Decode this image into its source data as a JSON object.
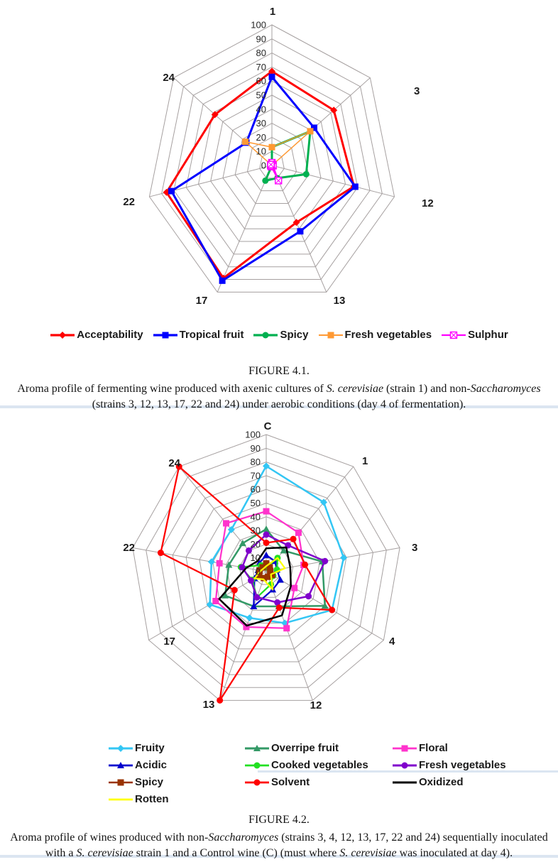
{
  "figure1": {
    "caption_title": "FIGURE 4.1.",
    "caption_plain": "Aroma profile of fermenting wine produced with axenic cultures of S. cerevisiae (strain 1) and non-Saccharomyces (strains 3, 12, 13, 17, 22 and 24) under aerobic conditions (day 4 of fermentation).",
    "caption_segments": [
      {
        "t": "Aroma profile of fermenting wine produced with axenic cultures of "
      },
      {
        "t": "S. cerevisiae",
        "i": true
      },
      {
        "t": " (strain 1) and non-"
      },
      {
        "t": "Saccharomyces",
        "i": true
      },
      {
        "t": " (strains 3, 12, 13, 17, 22 and 24) under aerobic conditions (day 4 of fermentation)."
      }
    ]
  },
  "figure2": {
    "caption_title": "FIGURE 4.2.",
    "caption_plain": "Aroma profile of wines produced with non-Saccharomyces (strains 3, 4, 12, 13, 17, 22 and 24) sequentially inoculated with a S. cerevisiae strain 1 and a Control wine (C) (must where S. cerevisiae was inoculated at day 4).",
    "caption_segments": [
      {
        "t": "Aroma profile of wines produced with non-"
      },
      {
        "t": "Saccharomyces",
        "i": true
      },
      {
        "t": " (strains 3, 4, 12, 13, 17, 22 and 24) sequentially inoculated with a "
      },
      {
        "t": "S. cerevisiae",
        "i": true
      },
      {
        "t": " strain 1 and a Control wine (C) (must where "
      },
      {
        "t": "S. cerevisiae",
        "i": true
      },
      {
        "t": " was inoculated at day 4)."
      }
    ]
  },
  "chart_data": [
    {
      "type": "radar",
      "title": "",
      "categories": [
        "1",
        "3",
        "12",
        "13",
        "17",
        "22",
        "24"
      ],
      "axis_range": [
        0,
        100
      ],
      "tick_step": 10,
      "tick_labels": [
        "0",
        "10",
        "20",
        "30",
        "40",
        "50",
        "60",
        "70",
        "80",
        "90",
        "100"
      ],
      "grid_color": "#a6a0a0",
      "legend_position": "bottom",
      "series": [
        {
          "name": "Acceptability",
          "color": "#ff0000",
          "marker": "diamond",
          "line_width": 3,
          "values": [
            67,
            63,
            67,
            45,
            89,
            86,
            58
          ]
        },
        {
          "name": "Tropical fruit",
          "color": "#0000ff",
          "marker": "square",
          "line_width": 3,
          "values": [
            63,
            43,
            68,
            52,
            91,
            82,
            26
          ]
        },
        {
          "name": "Spicy",
          "color": "#00b050",
          "marker": "circle",
          "line_width": 3,
          "values": [
            13,
            39,
            28,
            10,
            12,
            0,
            0
          ]
        },
        {
          "name": "Fresh vegetables",
          "color": "#ff9933",
          "marker": "square",
          "line_width": 1.5,
          "values": [
            13,
            39,
            0,
            0,
            0,
            0,
            27
          ]
        },
        {
          "name": "Sulphur",
          "color": "#ff00ff",
          "marker": "square-x",
          "line_width": 1.75,
          "values": [
            2,
            1,
            1,
            12,
            1,
            1,
            1
          ]
        }
      ]
    },
    {
      "type": "radar",
      "title": "",
      "categories": [
        "C",
        "1",
        "3",
        "4",
        "12",
        "13",
        "17",
        "22",
        "24"
      ],
      "axis_range": [
        0,
        100
      ],
      "tick_step": 10,
      "tick_labels": [
        "0",
        "10",
        "20",
        "30",
        "40",
        "50",
        "60",
        "70",
        "80",
        "90",
        "100"
      ],
      "grid_color": "#a6a0a0",
      "legend_position": "bottom",
      "series": [
        {
          "name": "Fruity",
          "color": "#33c6f4",
          "marker": "diamond",
          "line_width": 2.5,
          "values": [
            77,
            66,
            58,
            56,
            40,
            36,
            48,
            41,
            40
          ]
        },
        {
          "name": "Overripe fruit",
          "color": "#339966",
          "marker": "triangle",
          "line_width": 2.5,
          "values": [
            31,
            20,
            42,
            50,
            27,
            27,
            35,
            28,
            27
          ]
        },
        {
          "name": "Floral",
          "color": "#ff33cc",
          "marker": "square",
          "line_width": 2.25,
          "values": [
            44,
            37,
            28,
            24,
            44,
            43,
            43,
            35,
            46
          ]
        },
        {
          "name": "Acidic",
          "color": "#0000cd",
          "marker": "triangle",
          "line_width": 2.25,
          "values": [
            12,
            10,
            8,
            12,
            14,
            27,
            10,
            6,
            8
          ]
        },
        {
          "name": "Cooked vegetables",
          "color": "#22e022",
          "marker": "circle",
          "line_width": 2.25,
          "values": [
            3,
            13,
            8,
            6,
            10,
            20,
            12,
            19,
            6
          ]
        },
        {
          "name": "Fresh vegetables",
          "color": "#8000cc",
          "marker": "circle",
          "line_width": 2.5,
          "values": [
            27,
            25,
            44,
            36,
            24,
            20,
            13,
            18,
            20
          ]
        },
        {
          "name": "Spicy",
          "color": "#993300",
          "marker": "square",
          "line_width": 2,
          "values": [
            6,
            4,
            3,
            5,
            4,
            5,
            6,
            5,
            4
          ]
        },
        {
          "name": "Solvent",
          "color": "#ff0000",
          "marker": "circle",
          "line_width": 2.25,
          "values": [
            21,
            31,
            29,
            56,
            28,
            100,
            27,
            79,
            100
          ]
        },
        {
          "name": "Oxidized",
          "color": "#000000",
          "marker": "none",
          "line_width": 2.5,
          "values": [
            17,
            23,
            18,
            21,
            34,
            42,
            40,
            15,
            10
          ]
        },
        {
          "name": "Rotten",
          "color": "#ffff00",
          "marker": "none",
          "line_width": 2.25,
          "values": [
            4,
            13,
            14,
            4,
            14,
            6,
            10,
            4,
            3
          ]
        }
      ]
    }
  ]
}
